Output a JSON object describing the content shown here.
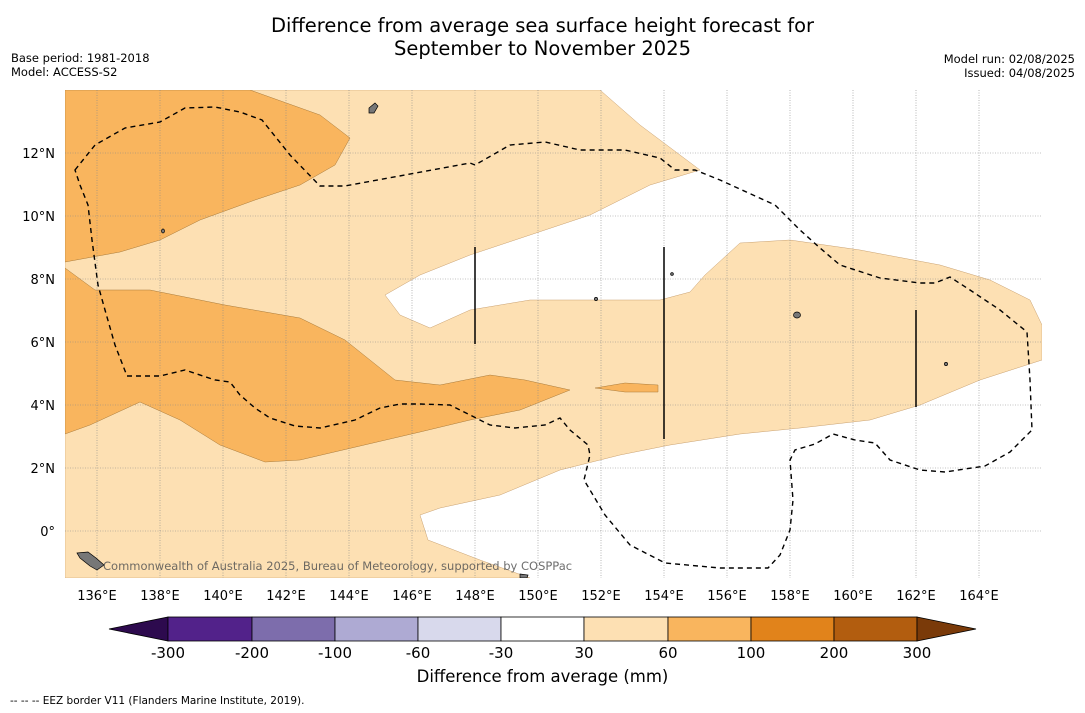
{
  "title_line1": "Difference from average sea surface height forecast for",
  "title_line2": "September to November 2025",
  "base_period": "Base period: 1981-2018",
  "model": "Model: ACCESS-S2",
  "model_run": "Model run: 02/08/2025",
  "issued": "Issued: 04/08/2025",
  "copyright": "Commonwealth of Australia 2025, Bureau of Meteorology, supported by COSPPac",
  "lon_ticks": [
    "136°E",
    "138°E",
    "140°E",
    "142°E",
    "144°E",
    "146°E",
    "148°E",
    "150°E",
    "152°E",
    "154°E",
    "156°E",
    "158°E",
    "160°E",
    "162°E",
    "164°E"
  ],
  "lat_ticks": [
    "12°N",
    "10°N",
    "8°N",
    "6°N",
    "4°N",
    "2°N",
    "0°"
  ],
  "colorbar": {
    "label": "Difference from average (mm)",
    "ticks": [
      "-300",
      "-200",
      "-100",
      "-60",
      "-30",
      "30",
      "60",
      "100",
      "200",
      "300"
    ],
    "colors": [
      "#2d0a4e",
      "#52228a",
      "#7d6dac",
      "#aeaad3",
      "#d8d9ec",
      "#ffffff",
      "#fde0b3",
      "#f9b55e",
      "#e1831b",
      "#b25d0f",
      "#7a3a09"
    ]
  },
  "footnote": "-- -- -- EEZ border V11 (Flanders Marine Institute, 2019)."
}
